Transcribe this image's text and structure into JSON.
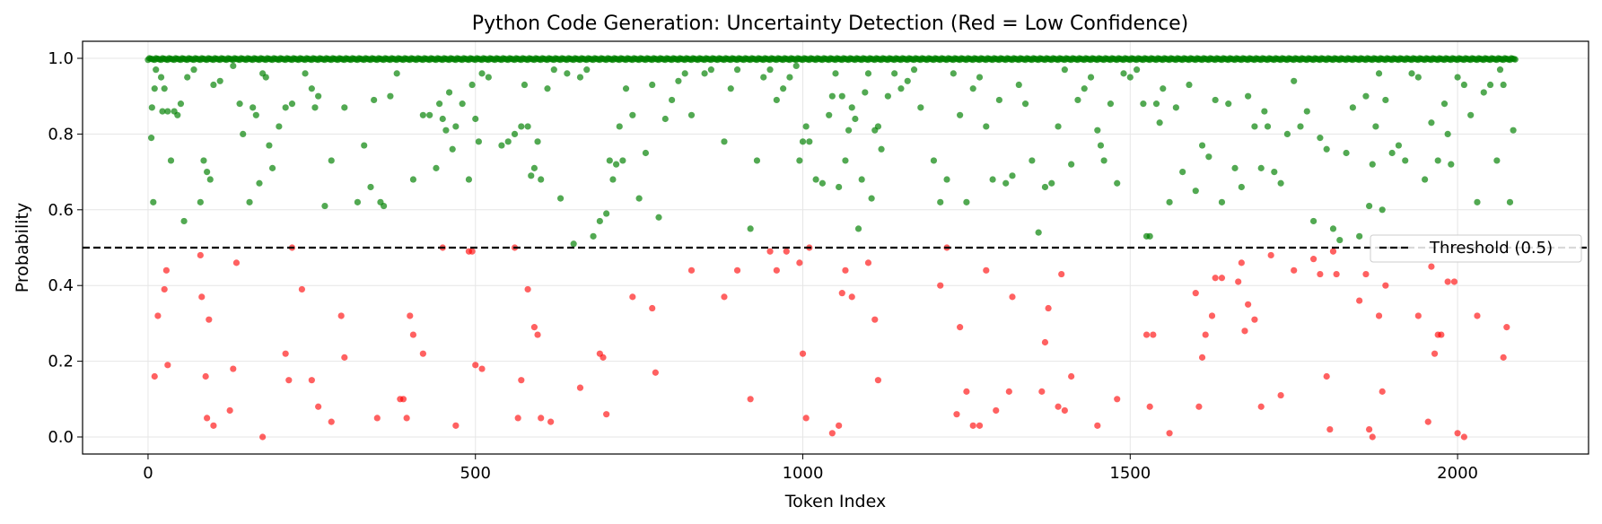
{
  "chart_data": {
    "type": "scatter",
    "title": "Python Code Generation: Uncertainty Detection (Red = Low Confidence)",
    "xlabel": "Token Index",
    "ylabel": "Probability",
    "xlim": [
      -100,
      2200
    ],
    "ylim": [
      -0.045,
      1.045
    ],
    "xticks": [
      0,
      500,
      1000,
      1500,
      2000
    ],
    "yticks": [
      0.0,
      0.2,
      0.4,
      0.6,
      0.8,
      1.0
    ],
    "grid": true,
    "n_tokens": 2090,
    "threshold": {
      "value": 0.5,
      "label": "Threshold (0.5)",
      "style": "dashed",
      "color": "#000000"
    },
    "legend": {
      "position": "right",
      "entries": [
        "Threshold (0.5)"
      ]
    },
    "colors": {
      "high_confidence": "#008000",
      "low_confidence": "#ff0000"
    },
    "high_confidence_points": [
      [
        5,
        0.79
      ],
      [
        6,
        0.87
      ],
      [
        8,
        0.62
      ],
      [
        10,
        0.92
      ],
      [
        12,
        0.97
      ],
      [
        20,
        0.95
      ],
      [
        22,
        0.86
      ],
      [
        25,
        0.92
      ],
      [
        30,
        0.86
      ],
      [
        35,
        0.73
      ],
      [
        40,
        0.86
      ],
      [
        45,
        0.85
      ],
      [
        50,
        0.88
      ],
      [
        55,
        0.57
      ],
      [
        60,
        0.95
      ],
      [
        70,
        0.97
      ],
      [
        80,
        0.62
      ],
      [
        85,
        0.73
      ],
      [
        90,
        0.7
      ],
      [
        95,
        0.68
      ],
      [
        100,
        0.93
      ],
      [
        110,
        0.94
      ],
      [
        130,
        0.98
      ],
      [
        140,
        0.88
      ],
      [
        145,
        0.8
      ],
      [
        155,
        0.62
      ],
      [
        160,
        0.87
      ],
      [
        165,
        0.85
      ],
      [
        170,
        0.67
      ],
      [
        175,
        0.96
      ],
      [
        180,
        0.95
      ],
      [
        185,
        0.77
      ],
      [
        190,
        0.71
      ],
      [
        200,
        0.82
      ],
      [
        210,
        0.87
      ],
      [
        220,
        0.88
      ],
      [
        240,
        0.96
      ],
      [
        250,
        0.92
      ],
      [
        255,
        0.87
      ],
      [
        260,
        0.9
      ],
      [
        270,
        0.61
      ],
      [
        280,
        0.73
      ],
      [
        300,
        0.87
      ],
      [
        320,
        0.62
      ],
      [
        330,
        0.77
      ],
      [
        340,
        0.66
      ],
      [
        345,
        0.89
      ],
      [
        355,
        0.62
      ],
      [
        360,
        0.61
      ],
      [
        370,
        0.9
      ],
      [
        380,
        0.96
      ],
      [
        405,
        0.68
      ],
      [
        420,
        0.85
      ],
      [
        430,
        0.85
      ],
      [
        440,
        0.71
      ],
      [
        445,
        0.88
      ],
      [
        450,
        0.84
      ],
      [
        455,
        0.81
      ],
      [
        460,
        0.91
      ],
      [
        465,
        0.76
      ],
      [
        470,
        0.82
      ],
      [
        480,
        0.88
      ],
      [
        490,
        0.68
      ],
      [
        495,
        0.93
      ],
      [
        500,
        0.84
      ],
      [
        505,
        0.78
      ],
      [
        510,
        0.96
      ],
      [
        520,
        0.95
      ],
      [
        540,
        0.77
      ],
      [
        550,
        0.78
      ],
      [
        560,
        0.8
      ],
      [
        570,
        0.82
      ],
      [
        575,
        0.93
      ],
      [
        580,
        0.82
      ],
      [
        585,
        0.69
      ],
      [
        590,
        0.71
      ],
      [
        595,
        0.78
      ],
      [
        600,
        0.68
      ],
      [
        610,
        0.92
      ],
      [
        620,
        0.97
      ],
      [
        630,
        0.63
      ],
      [
        640,
        0.96
      ],
      [
        650,
        0.51
      ],
      [
        660,
        0.95
      ],
      [
        670,
        0.97
      ],
      [
        680,
        0.53
      ],
      [
        690,
        0.57
      ],
      [
        700,
        0.59
      ],
      [
        705,
        0.73
      ],
      [
        710,
        0.68
      ],
      [
        715,
        0.72
      ],
      [
        720,
        0.82
      ],
      [
        725,
        0.73
      ],
      [
        730,
        0.92
      ],
      [
        740,
        0.85
      ],
      [
        750,
        0.63
      ],
      [
        760,
        0.75
      ],
      [
        770,
        0.93
      ],
      [
        780,
        0.58
      ],
      [
        790,
        0.84
      ],
      [
        800,
        0.89
      ],
      [
        810,
        0.94
      ],
      [
        820,
        0.96
      ],
      [
        830,
        0.85
      ],
      [
        850,
        0.96
      ],
      [
        860,
        0.97
      ],
      [
        880,
        0.78
      ],
      [
        890,
        0.92
      ],
      [
        900,
        0.97
      ],
      [
        920,
        0.55
      ],
      [
        930,
        0.73
      ],
      [
        940,
        0.95
      ],
      [
        950,
        0.97
      ],
      [
        960,
        0.89
      ],
      [
        970,
        0.92
      ],
      [
        980,
        0.95
      ],
      [
        990,
        0.98
      ],
      [
        995,
        0.73
      ],
      [
        1000,
        0.78
      ],
      [
        1005,
        0.82
      ],
      [
        1010,
        0.78
      ],
      [
        1020,
        0.68
      ],
      [
        1030,
        0.67
      ],
      [
        1040,
        0.85
      ],
      [
        1045,
        0.9
      ],
      [
        1050,
        0.96
      ],
      [
        1055,
        0.66
      ],
      [
        1060,
        0.9
      ],
      [
        1065,
        0.73
      ],
      [
        1070,
        0.81
      ],
      [
        1075,
        0.87
      ],
      [
        1080,
        0.84
      ],
      [
        1085,
        0.55
      ],
      [
        1090,
        0.68
      ],
      [
        1095,
        0.91
      ],
      [
        1100,
        0.96
      ],
      [
        1105,
        0.63
      ],
      [
        1110,
        0.81
      ],
      [
        1115,
        0.82
      ],
      [
        1120,
        0.76
      ],
      [
        1130,
        0.9
      ],
      [
        1140,
        0.96
      ],
      [
        1150,
        0.92
      ],
      [
        1160,
        0.94
      ],
      [
        1170,
        0.97
      ],
      [
        1180,
        0.87
      ],
      [
        1200,
        0.73
      ],
      [
        1210,
        0.62
      ],
      [
        1220,
        0.68
      ],
      [
        1230,
        0.96
      ],
      [
        1240,
        0.85
      ],
      [
        1250,
        0.62
      ],
      [
        1260,
        0.92
      ],
      [
        1270,
        0.95
      ],
      [
        1280,
        0.82
      ],
      [
        1290,
        0.68
      ],
      [
        1300,
        0.89
      ],
      [
        1310,
        0.67
      ],
      [
        1320,
        0.69
      ],
      [
        1330,
        0.93
      ],
      [
        1340,
        0.88
      ],
      [
        1350,
        0.73
      ],
      [
        1360,
        0.54
      ],
      [
        1370,
        0.66
      ],
      [
        1380,
        0.67
      ],
      [
        1390,
        0.82
      ],
      [
        1400,
        0.97
      ],
      [
        1410,
        0.72
      ],
      [
        1420,
        0.89
      ],
      [
        1430,
        0.92
      ],
      [
        1440,
        0.95
      ],
      [
        1450,
        0.81
      ],
      [
        1455,
        0.77
      ],
      [
        1460,
        0.73
      ],
      [
        1470,
        0.88
      ],
      [
        1480,
        0.67
      ],
      [
        1490,
        0.96
      ],
      [
        1500,
        0.95
      ],
      [
        1510,
        0.97
      ],
      [
        1520,
        0.88
      ],
      [
        1525,
        0.53
      ],
      [
        1530,
        0.53
      ],
      [
        1540,
        0.88
      ],
      [
        1545,
        0.83
      ],
      [
        1550,
        0.92
      ],
      [
        1560,
        0.62
      ],
      [
        1570,
        0.87
      ],
      [
        1580,
        0.7
      ],
      [
        1590,
        0.93
      ],
      [
        1600,
        0.65
      ],
      [
        1610,
        0.77
      ],
      [
        1620,
        0.74
      ],
      [
        1630,
        0.89
      ],
      [
        1640,
        0.62
      ],
      [
        1650,
        0.88
      ],
      [
        1660,
        0.71
      ],
      [
        1670,
        0.66
      ],
      [
        1680,
        0.9
      ],
      [
        1690,
        0.82
      ],
      [
        1700,
        0.71
      ],
      [
        1705,
        0.86
      ],
      [
        1710,
        0.82
      ],
      [
        1720,
        0.7
      ],
      [
        1730,
        0.67
      ],
      [
        1740,
        0.8
      ],
      [
        1750,
        0.94
      ],
      [
        1760,
        0.82
      ],
      [
        1770,
        0.86
      ],
      [
        1780,
        0.57
      ],
      [
        1790,
        0.79
      ],
      [
        1800,
        0.76
      ],
      [
        1810,
        0.55
      ],
      [
        1820,
        0.52
      ],
      [
        1830,
        0.75
      ],
      [
        1840,
        0.87
      ],
      [
        1850,
        0.53
      ],
      [
        1860,
        0.9
      ],
      [
        1865,
        0.61
      ],
      [
        1870,
        0.72
      ],
      [
        1875,
        0.82
      ],
      [
        1880,
        0.96
      ],
      [
        1885,
        0.6
      ],
      [
        1890,
        0.89
      ],
      [
        1900,
        0.75
      ],
      [
        1910,
        0.77
      ],
      [
        1920,
        0.73
      ],
      [
        1930,
        0.96
      ],
      [
        1940,
        0.95
      ],
      [
        1950,
        0.68
      ],
      [
        1960,
        0.83
      ],
      [
        1970,
        0.73
      ],
      [
        1980,
        0.88
      ],
      [
        1985,
        0.8
      ],
      [
        1990,
        0.72
      ],
      [
        2000,
        0.95
      ],
      [
        2010,
        0.93
      ],
      [
        2020,
        0.85
      ],
      [
        2030,
        0.62
      ],
      [
        2040,
        0.91
      ],
      [
        2050,
        0.93
      ],
      [
        2060,
        0.73
      ],
      [
        2065,
        0.97
      ],
      [
        2070,
        0.93
      ],
      [
        2080,
        0.62
      ],
      [
        2085,
        0.81
      ]
    ],
    "low_confidence_points": [
      [
        10,
        0.16
      ],
      [
        15,
        0.32
      ],
      [
        25,
        0.39
      ],
      [
        28,
        0.44
      ],
      [
        30,
        0.19
      ],
      [
        80,
        0.48
      ],
      [
        82,
        0.37
      ],
      [
        88,
        0.16
      ],
      [
        90,
        0.05
      ],
      [
        93,
        0.31
      ],
      [
        100,
        0.03
      ],
      [
        125,
        0.07
      ],
      [
        130,
        0.18
      ],
      [
        135,
        0.46
      ],
      [
        175,
        0.0
      ],
      [
        210,
        0.22
      ],
      [
        215,
        0.15
      ],
      [
        220,
        0.5
      ],
      [
        235,
        0.39
      ],
      [
        250,
        0.15
      ],
      [
        260,
        0.08
      ],
      [
        280,
        0.04
      ],
      [
        295,
        0.32
      ],
      [
        300,
        0.21
      ],
      [
        350,
        0.05
      ],
      [
        385,
        0.1
      ],
      [
        390,
        0.1
      ],
      [
        395,
        0.05
      ],
      [
        400,
        0.32
      ],
      [
        405,
        0.27
      ],
      [
        420,
        0.22
      ],
      [
        450,
        0.5
      ],
      [
        470,
        0.03
      ],
      [
        490,
        0.49
      ],
      [
        495,
        0.49
      ],
      [
        500,
        0.19
      ],
      [
        510,
        0.18
      ],
      [
        560,
        0.5
      ],
      [
        565,
        0.05
      ],
      [
        570,
        0.15
      ],
      [
        580,
        0.39
      ],
      [
        590,
        0.29
      ],
      [
        595,
        0.27
      ],
      [
        600,
        0.05
      ],
      [
        615,
        0.04
      ],
      [
        660,
        0.13
      ],
      [
        690,
        0.22
      ],
      [
        695,
        0.21
      ],
      [
        700,
        0.06
      ],
      [
        740,
        0.37
      ],
      [
        770,
        0.34
      ],
      [
        775,
        0.17
      ],
      [
        830,
        0.44
      ],
      [
        880,
        0.37
      ],
      [
        900,
        0.44
      ],
      [
        920,
        0.1
      ],
      [
        950,
        0.49
      ],
      [
        960,
        0.44
      ],
      [
        975,
        0.49
      ],
      [
        995,
        0.46
      ],
      [
        1000,
        0.22
      ],
      [
        1005,
        0.05
      ],
      [
        1010,
        0.5
      ],
      [
        1045,
        0.01
      ],
      [
        1055,
        0.03
      ],
      [
        1060,
        0.38
      ],
      [
        1065,
        0.44
      ],
      [
        1075,
        0.37
      ],
      [
        1100,
        0.46
      ],
      [
        1110,
        0.31
      ],
      [
        1115,
        0.15
      ],
      [
        1210,
        0.4
      ],
      [
        1220,
        0.5
      ],
      [
        1235,
        0.06
      ],
      [
        1240,
        0.29
      ],
      [
        1250,
        0.12
      ],
      [
        1260,
        0.03
      ],
      [
        1270,
        0.03
      ],
      [
        1280,
        0.44
      ],
      [
        1295,
        0.07
      ],
      [
        1315,
        0.12
      ],
      [
        1320,
        0.37
      ],
      [
        1365,
        0.12
      ],
      [
        1370,
        0.25
      ],
      [
        1375,
        0.34
      ],
      [
        1390,
        0.08
      ],
      [
        1395,
        0.43
      ],
      [
        1400,
        0.07
      ],
      [
        1410,
        0.16
      ],
      [
        1450,
        0.03
      ],
      [
        1480,
        0.1
      ],
      [
        1525,
        0.27
      ],
      [
        1530,
        0.08
      ],
      [
        1535,
        0.27
      ],
      [
        1560,
        0.01
      ],
      [
        1600,
        0.38
      ],
      [
        1605,
        0.08
      ],
      [
        1610,
        0.21
      ],
      [
        1615,
        0.27
      ],
      [
        1625,
        0.32
      ],
      [
        1630,
        0.42
      ],
      [
        1640,
        0.42
      ],
      [
        1665,
        0.41
      ],
      [
        1670,
        0.46
      ],
      [
        1675,
        0.28
      ],
      [
        1680,
        0.35
      ],
      [
        1690,
        0.31
      ],
      [
        1700,
        0.08
      ],
      [
        1715,
        0.48
      ],
      [
        1730,
        0.11
      ],
      [
        1750,
        0.44
      ],
      [
        1780,
        0.47
      ],
      [
        1790,
        0.43
      ],
      [
        1800,
        0.16
      ],
      [
        1805,
        0.02
      ],
      [
        1810,
        0.49
      ],
      [
        1815,
        0.43
      ],
      [
        1850,
        0.36
      ],
      [
        1860,
        0.43
      ],
      [
        1865,
        0.02
      ],
      [
        1870,
        0.0
      ],
      [
        1880,
        0.32
      ],
      [
        1885,
        0.12
      ],
      [
        1890,
        0.4
      ],
      [
        1940,
        0.32
      ],
      [
        1955,
        0.04
      ],
      [
        1960,
        0.45
      ],
      [
        1965,
        0.22
      ],
      [
        1970,
        0.27
      ],
      [
        1975,
        0.27
      ],
      [
        1985,
        0.41
      ],
      [
        1995,
        0.41
      ],
      [
        2000,
        0.01
      ],
      [
        2010,
        0.0
      ],
      [
        2030,
        0.32
      ],
      [
        2070,
        0.21
      ],
      [
        2075,
        0.29
      ]
    ]
  }
}
